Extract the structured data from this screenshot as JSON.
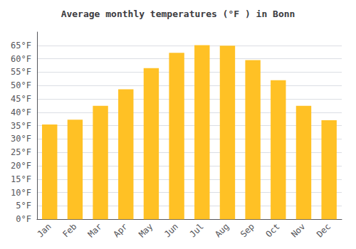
{
  "chart_data": {
    "type": "bar",
    "title": "Average monthly temperatures (°F ) in Bonn",
    "categories": [
      "Jan",
      "Feb",
      "Mar",
      "Apr",
      "May",
      "Jun",
      "Jul",
      "Aug",
      "Sep",
      "Oct",
      "Nov",
      "Dec"
    ],
    "values": [
      35.4,
      37.2,
      42.4,
      48.6,
      56.5,
      62.2,
      65.1,
      64.9,
      59.5,
      52.0,
      42.4,
      37.0
    ],
    "color": "#FFC125",
    "ylim": [
      0,
      70
    ],
    "yticks": [
      {
        "value": 0,
        "label": "0°F"
      },
      {
        "value": 5,
        "label": "5°F"
      },
      {
        "value": 10,
        "label": "10°F"
      },
      {
        "value": 15,
        "label": "15°F"
      },
      {
        "value": 20,
        "label": "20°F"
      },
      {
        "value": 25,
        "label": "25°F"
      },
      {
        "value": 30,
        "label": "30°F"
      },
      {
        "value": 35,
        "label": "35°F"
      },
      {
        "value": 40,
        "label": "40°F"
      },
      {
        "value": 45,
        "label": "45°F"
      },
      {
        "value": 50,
        "label": "50°F"
      },
      {
        "value": 55,
        "label": "55°F"
      },
      {
        "value": 60,
        "label": "60°F"
      },
      {
        "value": 65,
        "label": "65°F"
      }
    ],
    "grid": true
  }
}
